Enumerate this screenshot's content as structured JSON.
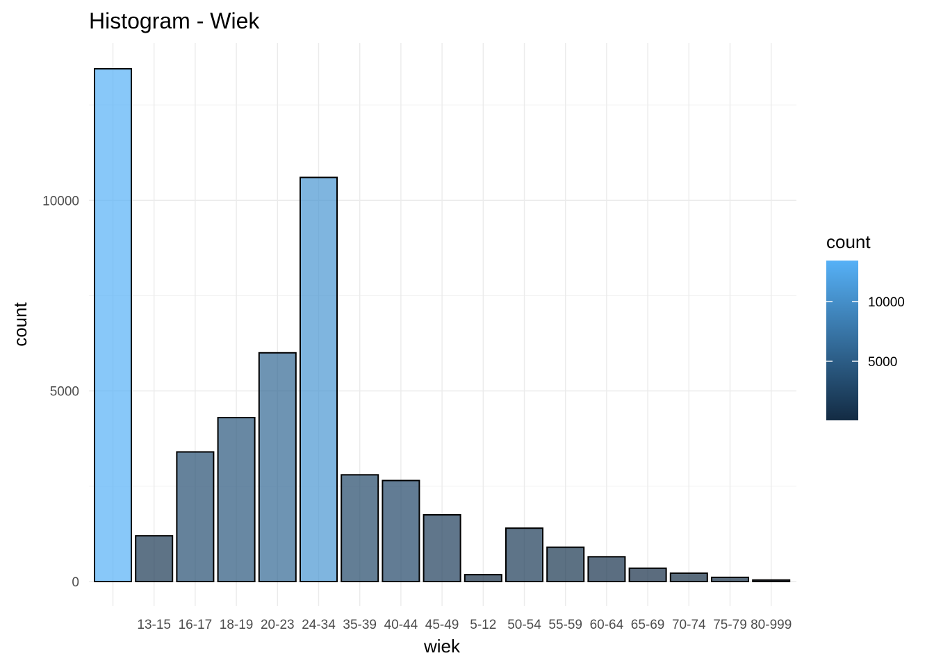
{
  "chart_data": {
    "type": "bar",
    "title": "Histogram - Wiek",
    "xlabel": "wiek",
    "ylabel": "count",
    "categories": [
      "",
      "13-15",
      "16-17",
      "18-19",
      "20-23",
      "24-34",
      "35-39",
      "40-44",
      "45-49",
      "5-12",
      "50-54",
      "55-59",
      "60-64",
      "65-69",
      "70-74",
      "75-79",
      "80-999"
    ],
    "values": [
      13450,
      1200,
      3400,
      4300,
      6000,
      10600,
      2800,
      2650,
      1750,
      180,
      1400,
      900,
      650,
      350,
      220,
      110,
      40
    ],
    "ylim": [
      0,
      13450
    ],
    "yticks": [
      0,
      5000,
      10000
    ],
    "grid": true,
    "legend": {
      "title": "count",
      "position": "right",
      "labels": [
        "5000",
        "10000"
      ],
      "low_color": "#132B43",
      "high_color": "#56B1F7"
    }
  }
}
